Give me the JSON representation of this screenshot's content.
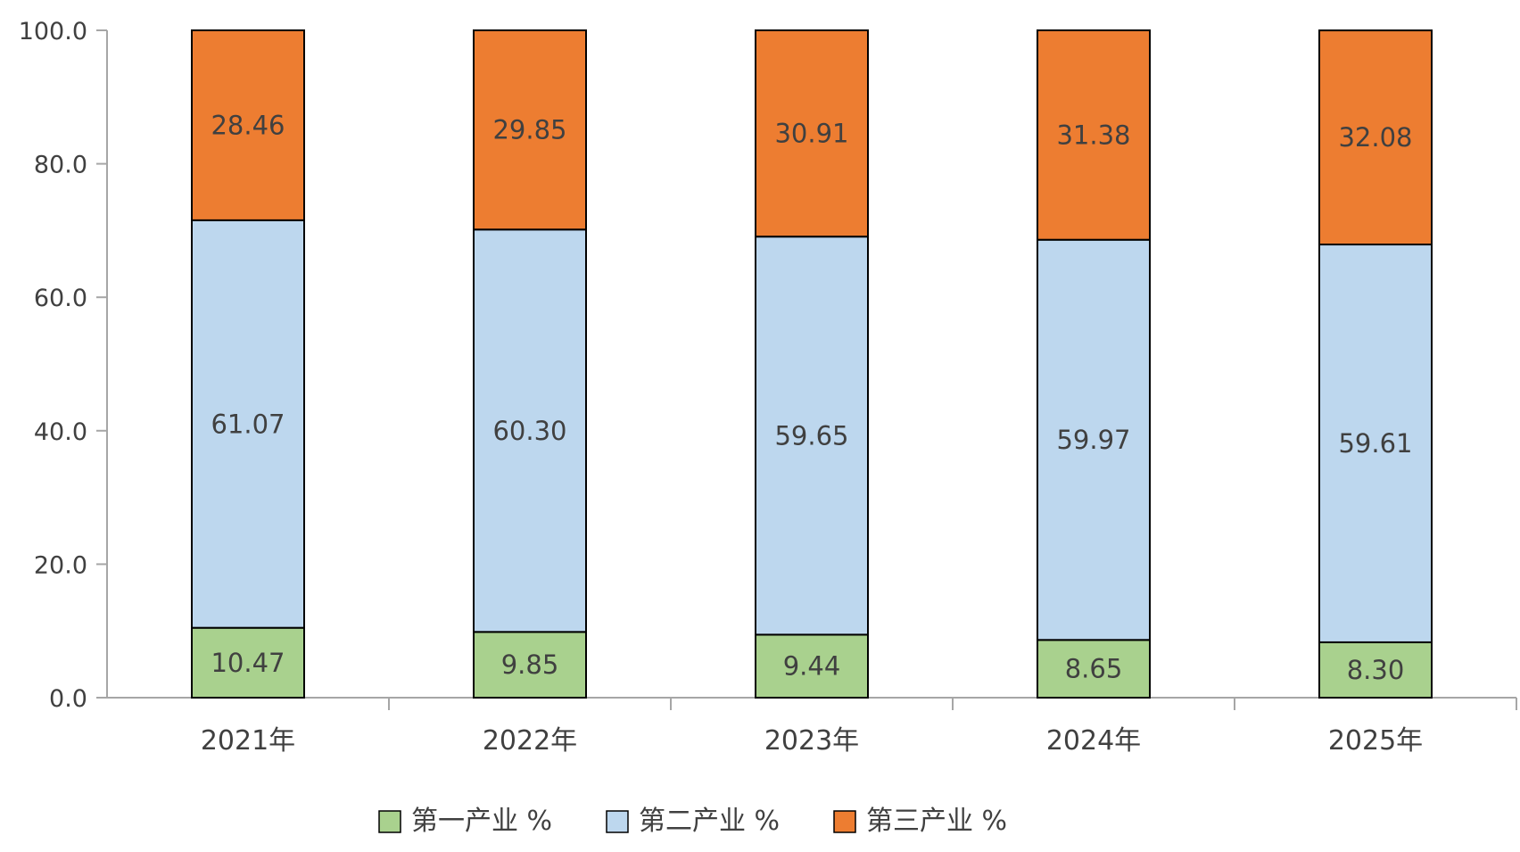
{
  "chart_data": {
    "type": "bar",
    "stacked": true,
    "categories": [
      "2021年",
      "2022年",
      "2023年",
      "2024年",
      "2025年"
    ],
    "series": [
      {
        "name": "第一产业 %",
        "color": "#A9D18E",
        "values": [
          10.47,
          9.85,
          9.44,
          8.65,
          8.3
        ],
        "labels": [
          "10.47",
          "9.85",
          "9.44",
          "8.65",
          "8.30"
        ]
      },
      {
        "name": "第二产业 %",
        "color": "#BDD7EE",
        "values": [
          61.07,
          60.3,
          59.65,
          59.97,
          59.61
        ],
        "labels": [
          "61.07",
          "60.30",
          "59.65",
          "59.97",
          "59.61"
        ]
      },
      {
        "name": "第三产业 %",
        "color": "#ED7D31",
        "values": [
          28.46,
          29.85,
          30.91,
          31.38,
          32.08
        ],
        "labels": [
          "28.46",
          "29.85",
          "30.91",
          "31.38",
          "32.08"
        ]
      }
    ],
    "title": "",
    "xlabel": "",
    "ylabel": "",
    "ylim": [
      0,
      100
    ],
    "yticks": [
      "0.0",
      "20.0",
      "40.0",
      "60.0",
      "80.0",
      "100.0"
    ],
    "grid": false,
    "legend": "bottom"
  }
}
